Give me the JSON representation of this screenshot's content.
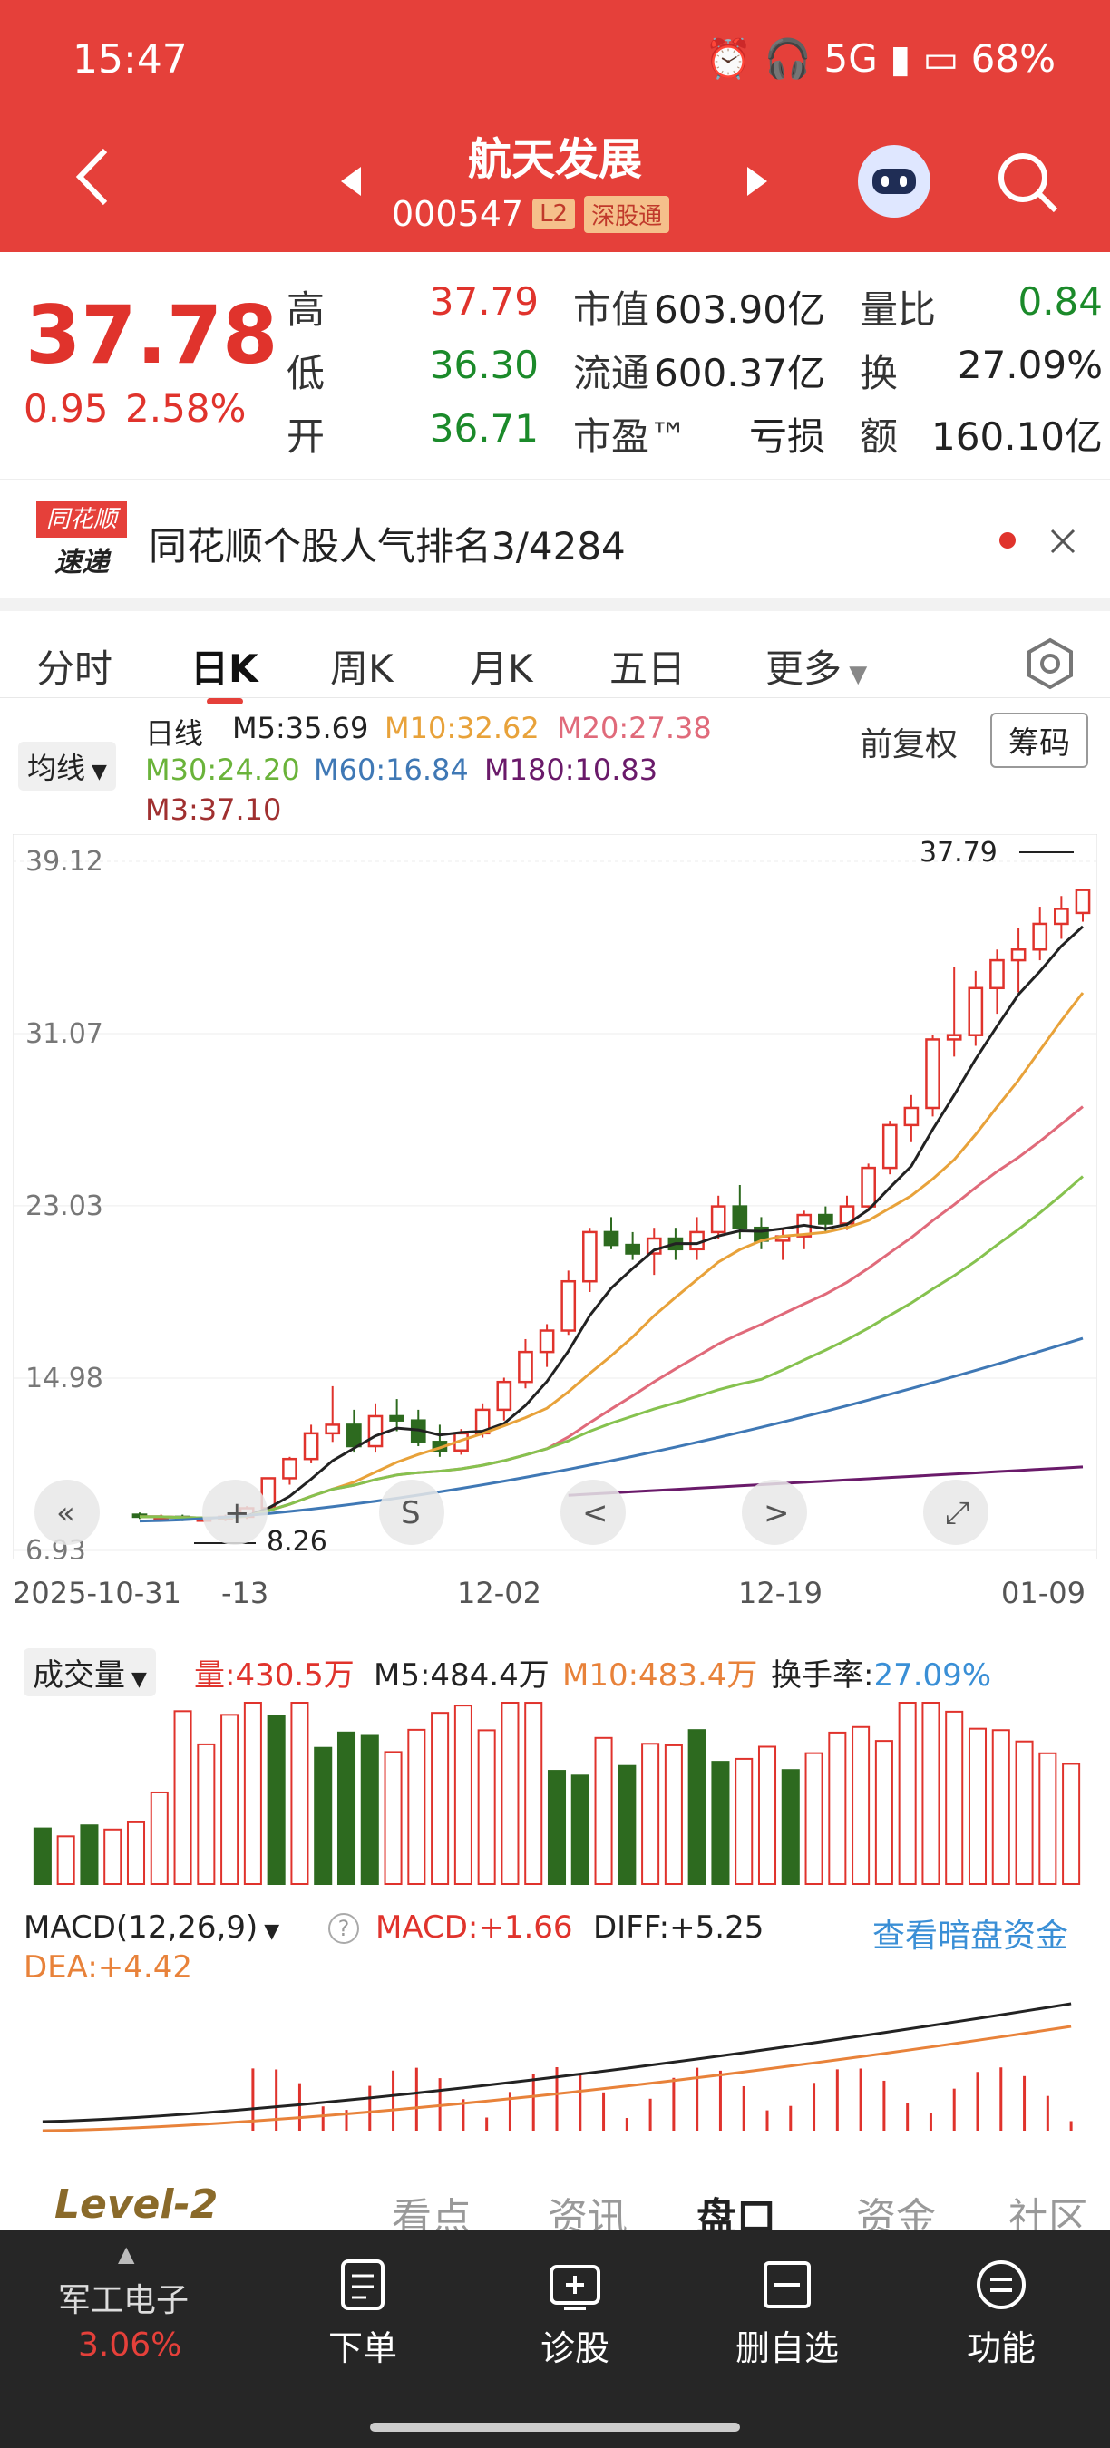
{
  "status": {
    "time": "15:47",
    "battery": "68%",
    "network": "5G"
  },
  "header": {
    "title": "航天发展",
    "code": "000547",
    "tag_l2": "L2",
    "tag_sgt": "深股通"
  },
  "quote": {
    "price": "37.78",
    "change": "0.95",
    "change_pct": "2.58%",
    "high_label": "高",
    "high": "37.79",
    "low_label": "低",
    "low": "36.30",
    "open_label": "开",
    "open": "36.71",
    "mcap_label": "市值",
    "mcap": "603.90亿",
    "float_label": "流通",
    "float": "600.37亿",
    "pe_label": "市盈™",
    "pe": "亏损",
    "vr_label": "量比",
    "vr": "0.84",
    "turnover_label": "换",
    "turnover": "27.09%",
    "amount_label": "额",
    "amount": "160.10亿"
  },
  "rank": {
    "logo_top": "同花顺",
    "logo_bottom": "速递",
    "text": "同花顺个股人气排名3/4284"
  },
  "tabs": [
    "分时",
    "日K",
    "周K",
    "月K",
    "五日",
    "更多"
  ],
  "active_tab": "日K",
  "ma_legend": {
    "selector": "均线",
    "kind": "日线",
    "m5": "M5:35.69",
    "m10": "M10:32.62",
    "m20": "M20:27.38",
    "m30": "M30:24.20",
    "m60": "M60:16.84",
    "m180": "M180:10.83",
    "m3": "M3:37.10",
    "fuquan": "前复权",
    "chouma": "筹码"
  },
  "colors": {
    "up": "#e0332c",
    "down": "#2d6a1f",
    "m5": "#222222",
    "m10": "#e8a23a",
    "m20": "#e06a7a",
    "m30": "#86c24f",
    "m60": "#3f78b5",
    "m180": "#6a1a6a",
    "accent": "#e5403a"
  },
  "chart_data": {
    "type": "candlestick",
    "y_ticks": [
      "39.12",
      "31.07",
      "23.03",
      "14.98",
      "6.93"
    ],
    "y_range": [
      6.93,
      39.12
    ],
    "x_ticks": [
      "2025-10-31",
      "-13",
      "12-02",
      "12-19",
      "01-09"
    ],
    "max_label": "37.79",
    "min_label": "8.26",
    "candles": [
      [
        8.6,
        8.7,
        8.4,
        8.5
      ],
      [
        8.5,
        8.6,
        8.4,
        8.5
      ],
      [
        8.5,
        8.6,
        8.3,
        8.4
      ],
      [
        8.4,
        8.5,
        8.26,
        8.4
      ],
      [
        8.4,
        8.6,
        8.3,
        8.5
      ],
      [
        8.5,
        9.0,
        8.4,
        8.9
      ],
      [
        8.9,
        10.3,
        8.8,
        10.3
      ],
      [
        10.3,
        11.3,
        10.0,
        11.2
      ],
      [
        11.2,
        12.8,
        11.0,
        12.4
      ],
      [
        12.4,
        14.6,
        12.0,
        12.8
      ],
      [
        12.8,
        13.5,
        11.5,
        11.8
      ],
      [
        11.8,
        13.8,
        11.5,
        13.2
      ],
      [
        13.2,
        14.0,
        12.5,
        13.0
      ],
      [
        13.0,
        13.5,
        11.8,
        12.0
      ],
      [
        12.0,
        12.8,
        11.3,
        11.6
      ],
      [
        11.6,
        12.6,
        11.4,
        12.4
      ],
      [
        12.4,
        13.8,
        12.2,
        13.5
      ],
      [
        13.5,
        15.0,
        13.0,
        14.8
      ],
      [
        14.8,
        16.8,
        14.5,
        16.2
      ],
      [
        16.2,
        17.5,
        15.5,
        17.2
      ],
      [
        17.2,
        20.0,
        17.0,
        19.5
      ],
      [
        19.5,
        22.0,
        19.0,
        21.8
      ],
      [
        21.8,
        22.5,
        21.0,
        21.2
      ],
      [
        21.2,
        21.8,
        20.5,
        20.8
      ],
      [
        20.8,
        22.0,
        19.8,
        21.5
      ],
      [
        21.5,
        22.0,
        20.5,
        21.0
      ],
      [
        21.0,
        22.5,
        20.5,
        21.8
      ],
      [
        21.8,
        23.5,
        21.5,
        23.0
      ],
      [
        23.0,
        24.0,
        21.5,
        22.0
      ],
      [
        22.0,
        22.5,
        21.0,
        21.4
      ],
      [
        21.4,
        22.0,
        20.5,
        21.6
      ],
      [
        21.6,
        22.8,
        21.0,
        22.6
      ],
      [
        22.6,
        23.0,
        21.8,
        22.2
      ],
      [
        22.2,
        23.5,
        21.9,
        23.0
      ],
      [
        23.0,
        25.0,
        22.8,
        24.8
      ],
      [
        24.8,
        27.0,
        24.5,
        26.8
      ],
      [
        26.8,
        28.2,
        26.0,
        27.6
      ],
      [
        27.6,
        31.0,
        27.2,
        30.8
      ],
      [
        30.8,
        34.2,
        30.0,
        31.0
      ],
      [
        31.0,
        34.0,
        30.5,
        33.2
      ],
      [
        33.2,
        35.0,
        32.0,
        34.5
      ],
      [
        34.5,
        36.0,
        33.0,
        35.0
      ],
      [
        35.0,
        37.0,
        34.5,
        36.2
      ],
      [
        36.2,
        37.5,
        35.5,
        36.9
      ],
      [
        36.71,
        37.79,
        36.3,
        37.78
      ]
    ],
    "volume": {
      "label": "成交量",
      "amount": "量:430.5万",
      "m5": "M5:484.4万",
      "m10": "M10:483.4万",
      "turnover_label": "换手率:",
      "turnover": "27.09%"
    },
    "macd": {
      "label": "MACD(12,26,9)",
      "macd": "MACD:+1.66",
      "diff": "DIFF:+5.25",
      "dea": "DEA:+4.42",
      "link": "查看暗盘资金"
    }
  },
  "bottom_tabs": [
    "Level-2",
    "看点",
    "资讯",
    "盘口",
    "资金",
    "社区"
  ],
  "bottom_bar": {
    "sector_name": "军工电子",
    "sector_change": "3.06%",
    "items": [
      "下单",
      "诊股",
      "删自选",
      "功能"
    ]
  }
}
